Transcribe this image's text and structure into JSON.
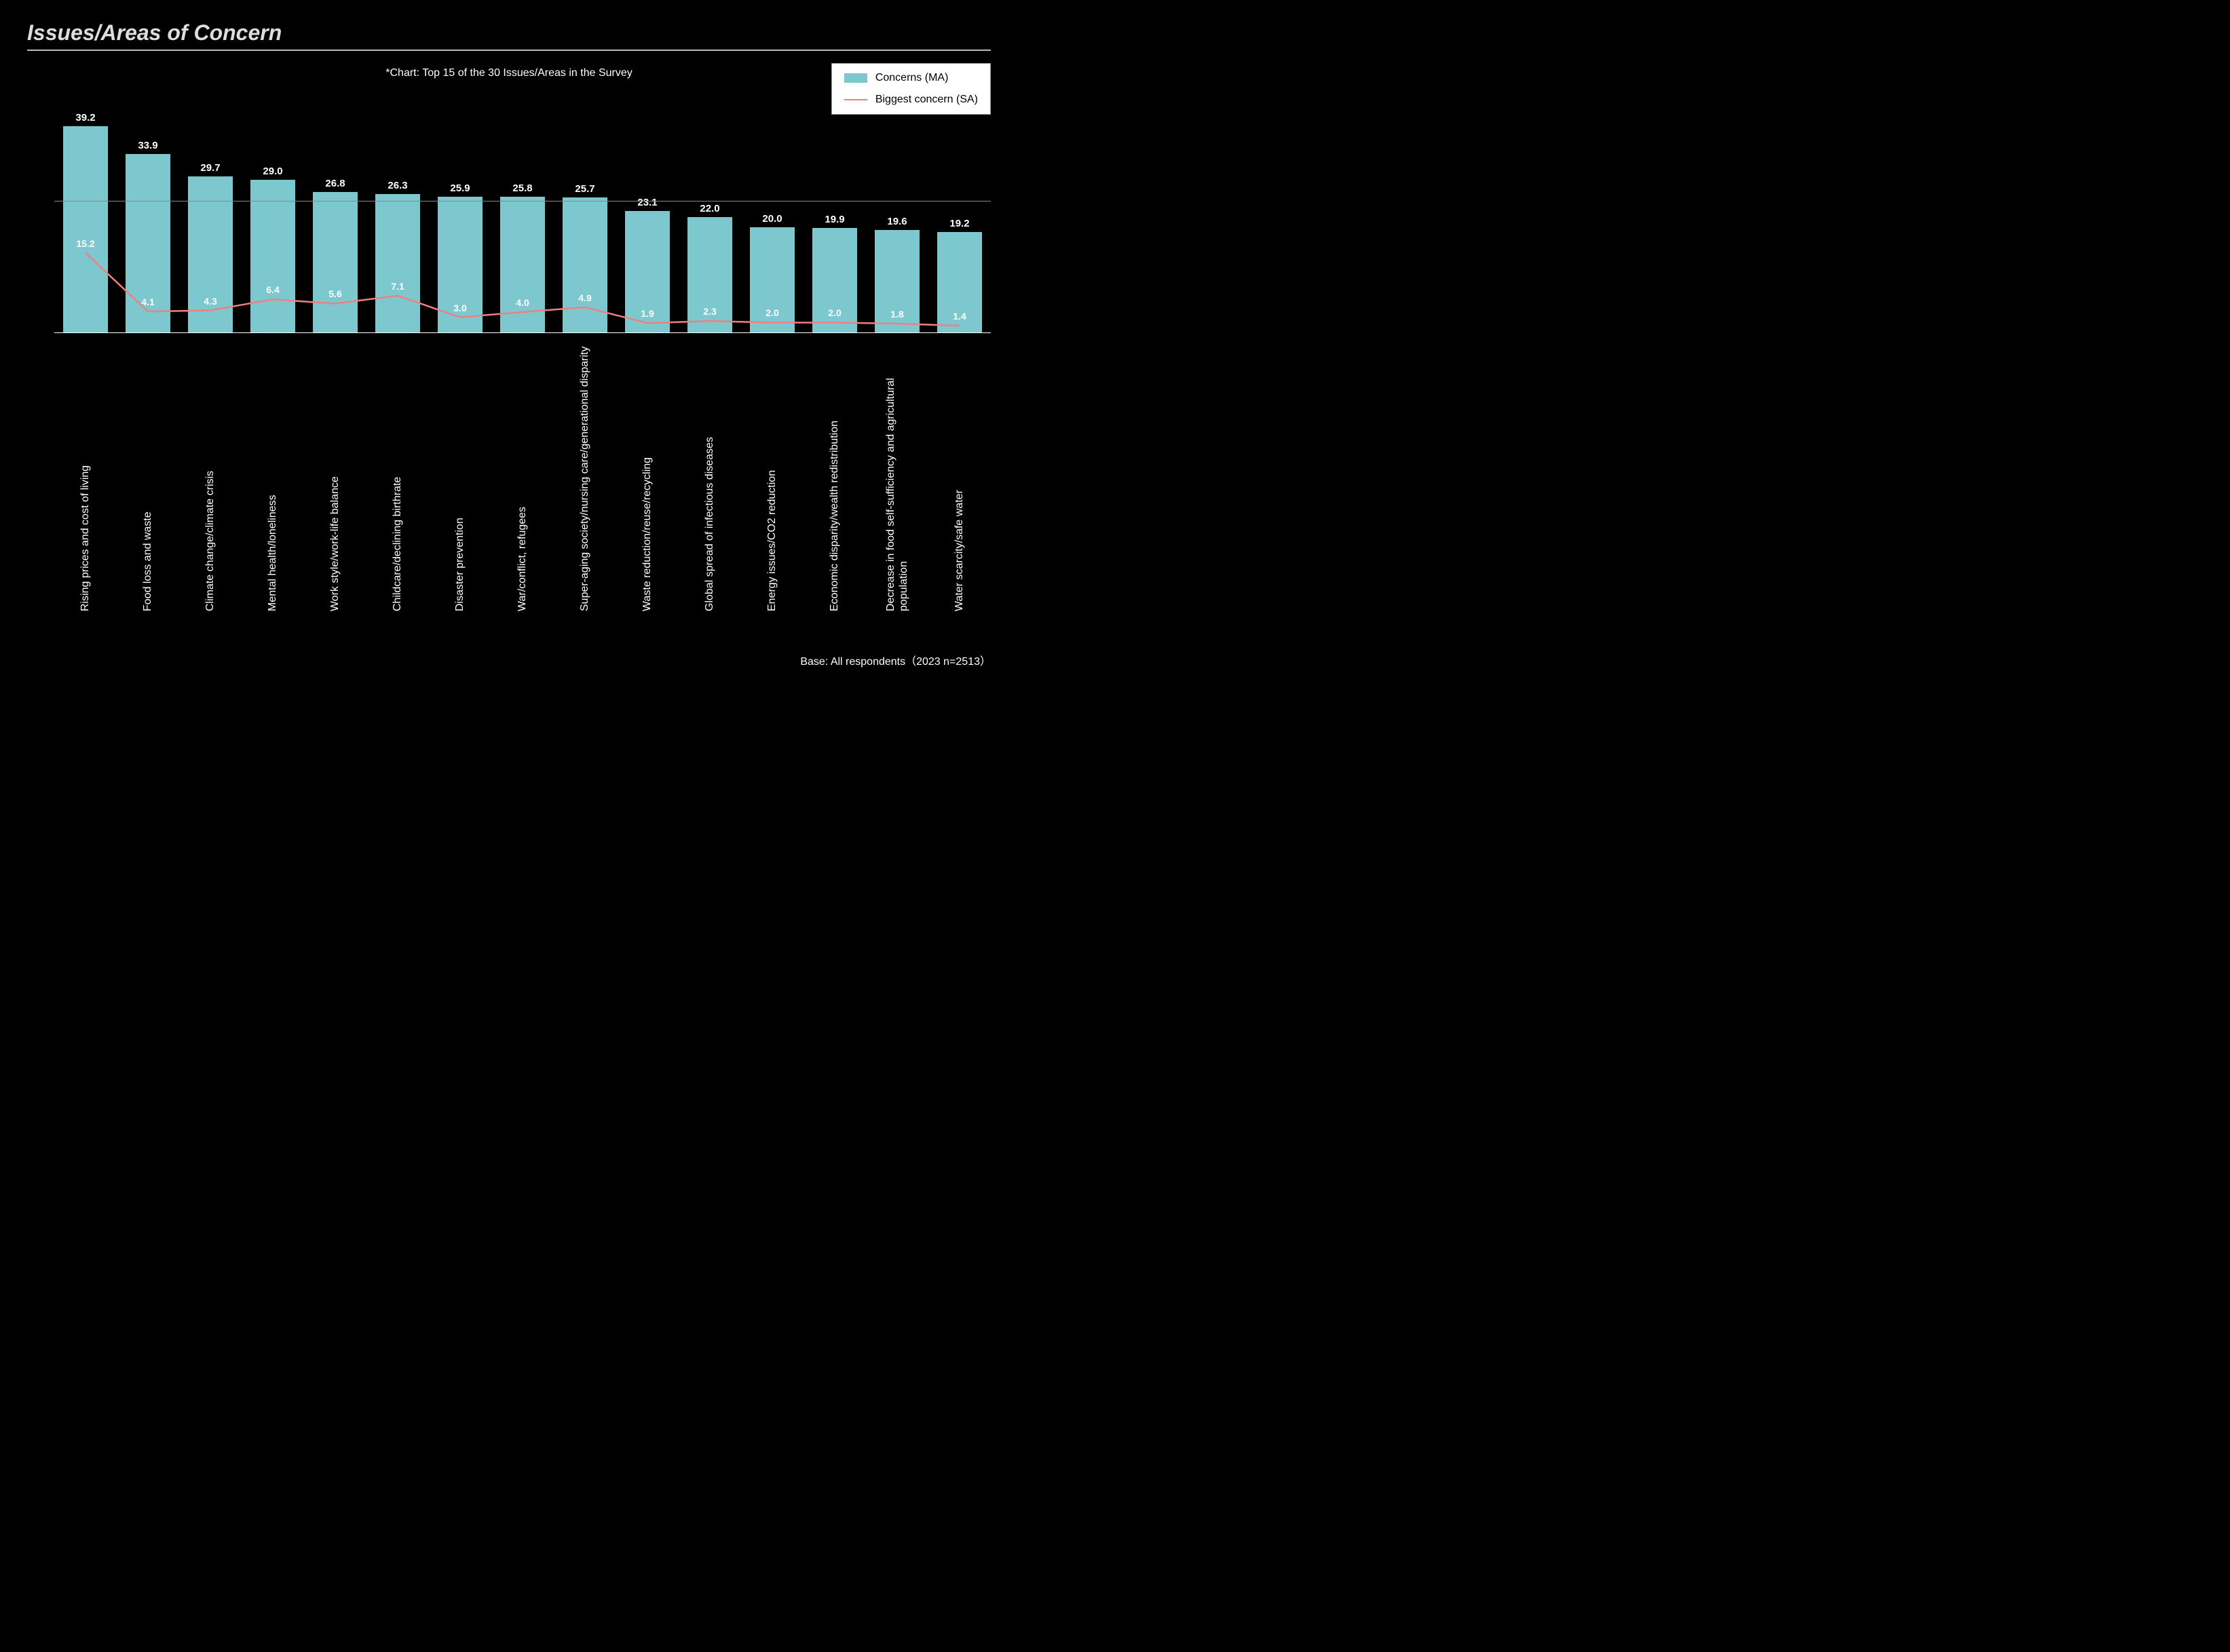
{
  "title": "Issues/Areas of Concern",
  "subtitle": "*Chart: Top 15 of the 30 Issues/Areas in the Survey",
  "footnote": "Base: All respondents（2023 n=2513）",
  "legend": {
    "bars": "Concerns (MA)",
    "line": "Biggest concern (SA)"
  },
  "chart": {
    "type": "bar+line",
    "y_max": 45,
    "gridline_at": 25,
    "bar_color": "#7cc8ce",
    "line_color": "#f08080",
    "line_width": 2.5,
    "background": "#000000",
    "axis_color": "#ffffff",
    "bar_label_fontsize": 15,
    "line_label_fontsize": 14,
    "categories": [
      "Rising prices and cost of living",
      "Food loss and waste",
      "Climate change/climate crisis",
      "Mental health/loneliness",
      "Work style/work-life balance",
      "Childcare/declining birthrate",
      "Disaster prevention",
      "War/conflict, refugees",
      "Super-aging society/nursing care/generational disparity",
      "Waste reduction/reuse/recycling",
      "Global spread of infectious diseases",
      "Energy issues/CO2 reduction",
      "Economic disparity/wealth redistribution",
      "Decrease in food self-sufficiency and agricultural population",
      "Water scarcity/safe water"
    ],
    "bar_values": [
      39.2,
      33.9,
      29.7,
      29.0,
      26.8,
      26.3,
      25.9,
      25.8,
      25.7,
      23.1,
      22.0,
      20.0,
      19.9,
      19.6,
      19.2
    ],
    "line_values": [
      15.2,
      4.1,
      4.3,
      6.4,
      5.6,
      7.1,
      3.0,
      4.0,
      4.9,
      1.9,
      2.3,
      2.0,
      2.0,
      1.8,
      1.4
    ]
  }
}
